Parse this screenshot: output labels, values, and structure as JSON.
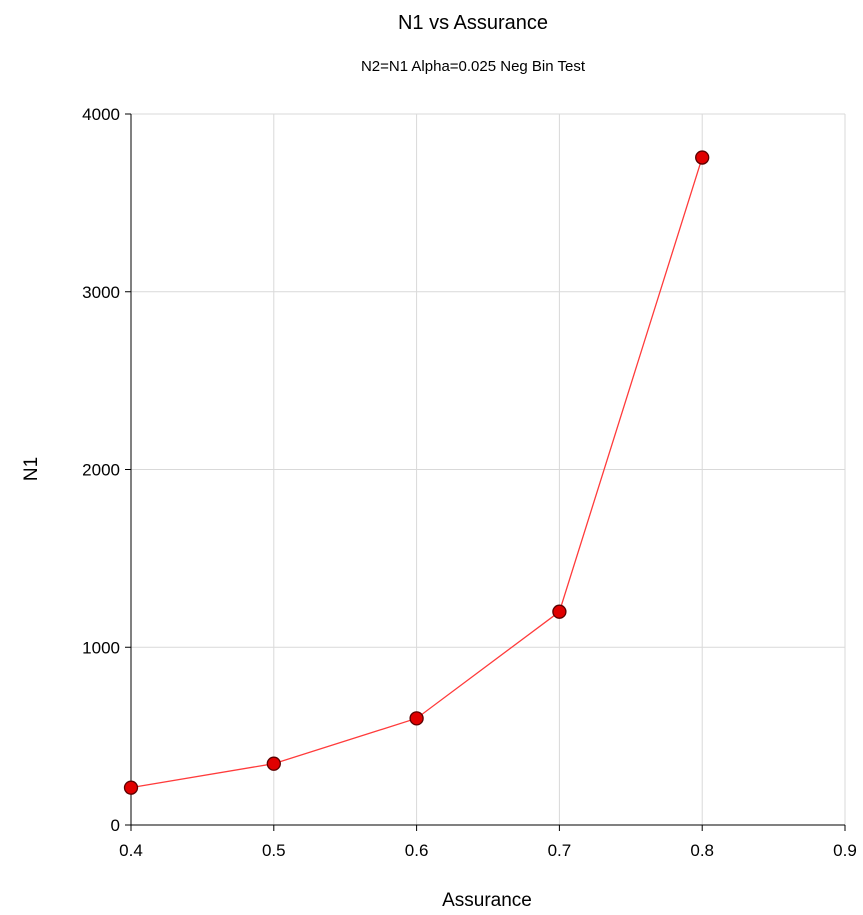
{
  "chart_data": {
    "type": "line",
    "title": "N1 vs Assurance",
    "subtitle": "N2=N1 Alpha=0.025 Neg Bin Test",
    "xlabel": "Assurance",
    "ylabel": "N1",
    "xlim": [
      0.4,
      0.9
    ],
    "ylim": [
      0,
      4000
    ],
    "x_ticks": [
      0.4,
      0.5,
      0.6,
      0.7,
      0.8,
      0.9
    ],
    "x_tick_labels": [
      "0.4",
      "0.5",
      "0.6",
      "0.7",
      "0.8",
      "0.9"
    ],
    "y_ticks": [
      0,
      1000,
      2000,
      3000,
      4000
    ],
    "y_tick_labels": [
      "0",
      "1000",
      "2000",
      "3000",
      "4000"
    ],
    "grid": true,
    "series": [
      {
        "x": [
          0.4,
          0.5,
          0.6,
          0.7,
          0.8
        ],
        "y": [
          210,
          345,
          600,
          1200,
          3755
        ],
        "line_color": "#ff3b3b",
        "marker": "circle",
        "marker_fill": "#e00000",
        "marker_edge": "#5a0000"
      }
    ]
  }
}
